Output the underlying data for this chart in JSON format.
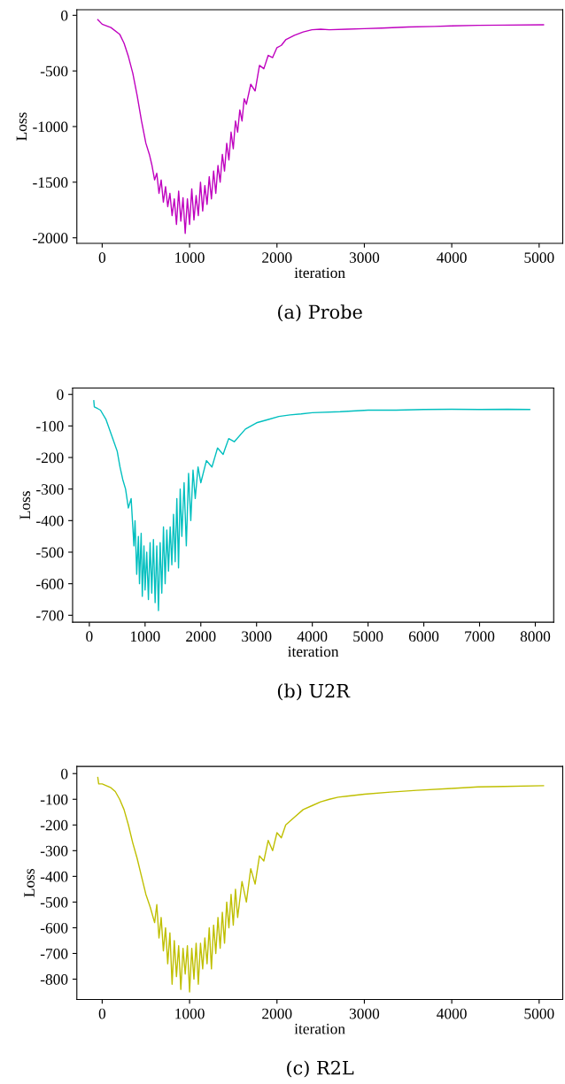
{
  "chart_data": [
    {
      "type": "line",
      "xlabel": "iteration",
      "ylabel": "Loss",
      "annotations": [
        "(a) Probe"
      ],
      "xlim": [
        -290,
        5270
      ],
      "ylim": [
        -2050,
        50
      ],
      "xticks": [
        0,
        1000,
        2000,
        3000,
        4000,
        5000
      ],
      "yticks": [
        -2000,
        -1500,
        -1000,
        -500,
        0
      ],
      "grid": false,
      "series": [
        {
          "color": "#bf00bf",
          "x": [
            -50,
            0,
            100,
            200,
            250,
            300,
            350,
            400,
            450,
            500,
            540,
            570,
            600,
            625,
            650,
            675,
            700,
            725,
            750,
            775,
            800,
            825,
            850,
            875,
            900,
            925,
            950,
            975,
            1000,
            1025,
            1050,
            1075,
            1100,
            1125,
            1150,
            1175,
            1200,
            1225,
            1250,
            1275,
            1300,
            1325,
            1350,
            1375,
            1400,
            1425,
            1450,
            1475,
            1500,
            1525,
            1550,
            1575,
            1600,
            1625,
            1650,
            1700,
            1750,
            1800,
            1850,
            1900,
            1950,
            2000,
            2050,
            2100,
            2200,
            2300,
            2400,
            2500,
            2600,
            2800,
            3000,
            3200,
            3500,
            3800,
            4000,
            4300,
            4600,
            5050
          ],
          "values": [
            -40,
            -80,
            -110,
            -170,
            -250,
            -370,
            -520,
            -720,
            -950,
            -1150,
            -1250,
            -1350,
            -1480,
            -1420,
            -1600,
            -1480,
            -1680,
            -1540,
            -1720,
            -1600,
            -1800,
            -1650,
            -1880,
            -1580,
            -1850,
            -1640,
            -1960,
            -1650,
            -1880,
            -1560,
            -1840,
            -1620,
            -1800,
            -1500,
            -1760,
            -1530,
            -1700,
            -1450,
            -1650,
            -1400,
            -1600,
            -1350,
            -1500,
            -1250,
            -1400,
            -1150,
            -1300,
            -1050,
            -1200,
            -950,
            -1050,
            -850,
            -950,
            -750,
            -800,
            -620,
            -680,
            -450,
            -480,
            -360,
            -380,
            -290,
            -270,
            -220,
            -180,
            -150,
            -130,
            -125,
            -130,
            -125,
            -120,
            -115,
            -105,
            -100,
            -95,
            -90,
            -88,
            -85
          ]
        }
      ]
    },
    {
      "type": "line",
      "xlabel": "iteration",
      "ylabel": "Loss",
      "annotations": [
        "(b) U2R"
      ],
      "xlim": [
        -300,
        8330
      ],
      "ylim": [
        -722,
        20
      ],
      "xticks": [
        0,
        1000,
        2000,
        3000,
        4000,
        5000,
        6000,
        7000,
        8000
      ],
      "yticks": [
        -700,
        -600,
        -500,
        -400,
        -300,
        -200,
        -100,
        0
      ],
      "grid": false,
      "series": [
        {
          "color": "#00bfbf",
          "x": [
            80,
            90,
            150,
            200,
            300,
            400,
            500,
            550,
            600,
            650,
            700,
            750,
            780,
            800,
            820,
            850,
            880,
            900,
            930,
            950,
            980,
            1000,
            1030,
            1060,
            1090,
            1120,
            1150,
            1180,
            1210,
            1240,
            1270,
            1300,
            1330,
            1360,
            1390,
            1420,
            1450,
            1480,
            1510,
            1540,
            1570,
            1600,
            1630,
            1660,
            1700,
            1740,
            1780,
            1820,
            1860,
            1900,
            1950,
            2000,
            2100,
            2200,
            2300,
            2400,
            2500,
            2600,
            2800,
            3000,
            3200,
            3400,
            3600,
            3800,
            4000,
            4500,
            5000,
            5500,
            6000,
            6500,
            7000,
            7500,
            7900
          ],
          "values": [
            -20,
            -40,
            -45,
            -50,
            -80,
            -130,
            -180,
            -230,
            -270,
            -300,
            -360,
            -330,
            -420,
            -480,
            -400,
            -570,
            -450,
            -600,
            -440,
            -640,
            -480,
            -620,
            -500,
            -650,
            -470,
            -630,
            -460,
            -660,
            -480,
            -685,
            -470,
            -630,
            -420,
            -600,
            -430,
            -560,
            -420,
            -540,
            -380,
            -530,
            -330,
            -550,
            -300,
            -450,
            -280,
            -480,
            -250,
            -400,
            -240,
            -330,
            -230,
            -280,
            -210,
            -230,
            -170,
            -190,
            -140,
            -150,
            -110,
            -90,
            -80,
            -70,
            -65,
            -62,
            -58,
            -55,
            -50,
            -50,
            -48,
            -47,
            -48,
            -47,
            -48
          ]
        }
      ]
    },
    {
      "type": "line",
      "xlabel": "iteration",
      "ylabel": "Loss",
      "annotations": [
        "(c) R2L"
      ],
      "xlim": [
        -290,
        5270
      ],
      "ylim": [
        -879,
        28
      ],
      "xticks": [
        0,
        1000,
        2000,
        3000,
        4000,
        5000
      ],
      "yticks": [
        -800,
        -700,
        -600,
        -500,
        -400,
        -300,
        -200,
        -100,
        0
      ],
      "grid": false,
      "series": [
        {
          "color": "#bfbf00",
          "x": [
            -50,
            -40,
            0,
            100,
            150,
            200,
            250,
            300,
            350,
            400,
            450,
            500,
            550,
            600,
            625,
            650,
            675,
            700,
            725,
            750,
            775,
            800,
            825,
            850,
            875,
            900,
            925,
            950,
            975,
            1000,
            1025,
            1050,
            1075,
            1100,
            1125,
            1150,
            1175,
            1200,
            1225,
            1250,
            1275,
            1300,
            1325,
            1350,
            1375,
            1400,
            1425,
            1450,
            1475,
            1500,
            1525,
            1550,
            1600,
            1650,
            1700,
            1750,
            1800,
            1850,
            1900,
            1950,
            2000,
            2050,
            2100,
            2200,
            2300,
            2400,
            2500,
            2600,
            2700,
            2800,
            3000,
            3300,
            3600,
            4000,
            4300,
            4600,
            5050
          ],
          "values": [
            -15,
            -40,
            -40,
            -55,
            -70,
            -100,
            -140,
            -200,
            -270,
            -330,
            -400,
            -470,
            -520,
            -580,
            -510,
            -640,
            -560,
            -690,
            -600,
            -740,
            -620,
            -820,
            -650,
            -790,
            -670,
            -840,
            -680,
            -780,
            -670,
            -850,
            -680,
            -800,
            -660,
            -820,
            -660,
            -760,
            -640,
            -740,
            -600,
            -760,
            -590,
            -700,
            -560,
            -680,
            -540,
            -660,
            -500,
            -600,
            -470,
            -590,
            -450,
            -560,
            -420,
            -500,
            -370,
            -430,
            -320,
            -340,
            -260,
            -300,
            -230,
            -250,
            -200,
            -170,
            -140,
            -125,
            -110,
            -100,
            -92,
            -88,
            -80,
            -72,
            -65,
            -58,
            -52,
            -50,
            -47
          ]
        }
      ]
    }
  ]
}
